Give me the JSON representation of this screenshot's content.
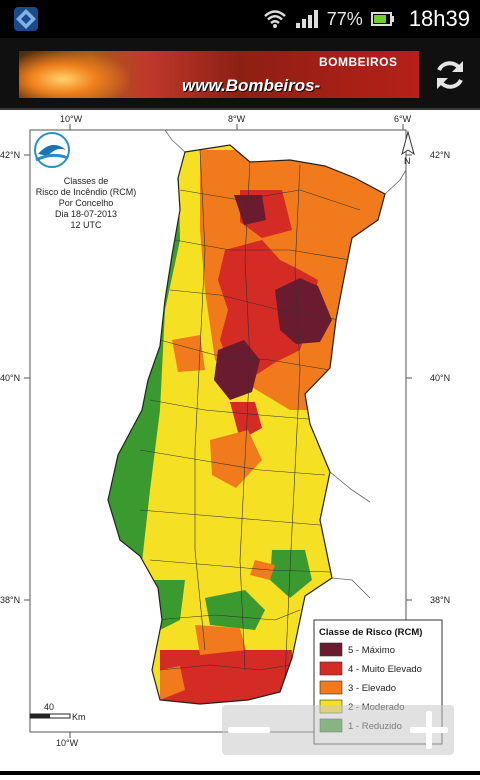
{
  "status_bar": {
    "battery": "77%",
    "time": "18h39"
  },
  "banner": {
    "brand": "BOMBEIROS",
    "url": "www.Bombeiros-Portugal.net"
  },
  "map": {
    "title_lines": [
      "Classes de",
      "Risco de Incêndio (RCM)",
      "Por Concelho",
      "Dia 18-07-2013",
      "12 UTC"
    ],
    "lon_labels_top": [
      "10°W",
      "8°W",
      "6°W"
    ],
    "lon_labels_bottom": [
      "10°W"
    ],
    "lat_labels": [
      "42°N",
      "40°N",
      "38°N"
    ],
    "north": "N",
    "scale_value": "40",
    "scale_unit": "Km",
    "legend": {
      "title": "Classe de Risco (RCM)",
      "items": [
        {
          "label": "5 - Máximo",
          "color": "#6b1b2f"
        },
        {
          "label": "4 - Muito Elevado",
          "color": "#d42b25"
        },
        {
          "label": "3 - Elevado",
          "color": "#f07a1c"
        },
        {
          "label": "2 - Moderado",
          "color": "#f5e023"
        },
        {
          "label": "1 - Reduzido",
          "color": "#3a9a30"
        }
      ]
    }
  },
  "colors": {
    "accent": "#33b5e5",
    "statusbar": "#000000",
    "map_border": "#222222"
  }
}
